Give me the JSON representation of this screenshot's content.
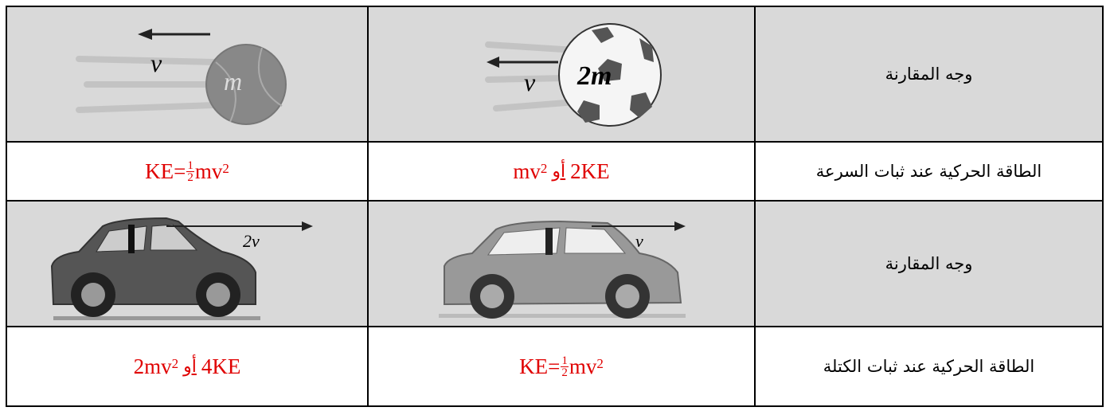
{
  "table": {
    "rows": [
      {
        "aspect": "وجه المقارنة",
        "images": [
          {
            "velocity": "v",
            "mass": "2m"
          },
          {
            "velocity": "v",
            "mass": "m"
          }
        ]
      },
      {
        "aspect": "الطاقة الحركية عند ثبات السرعة",
        "cells": [
          {
            "a": "2KE",
            "or": "أو",
            "base": "mv",
            "exp": "2"
          },
          {
            "lhs": "KE=",
            "num": "1",
            "den": "2",
            "base": "mv",
            "exp": "2"
          }
        ]
      },
      {
        "aspect": "وجه المقارنة",
        "images": [
          {
            "velocity": "v"
          },
          {
            "velocity": "2v"
          }
        ]
      },
      {
        "aspect": "الطاقة الحركية عند ثبات الكتلة",
        "cells": [
          {
            "lhs": "KE=",
            "num": "1",
            "den": "2",
            "base": "mv",
            "exp": "2"
          },
          {
            "a": "4KE",
            "or": "أو",
            "base": "2mv",
            "exp": "2"
          }
        ]
      }
    ]
  }
}
